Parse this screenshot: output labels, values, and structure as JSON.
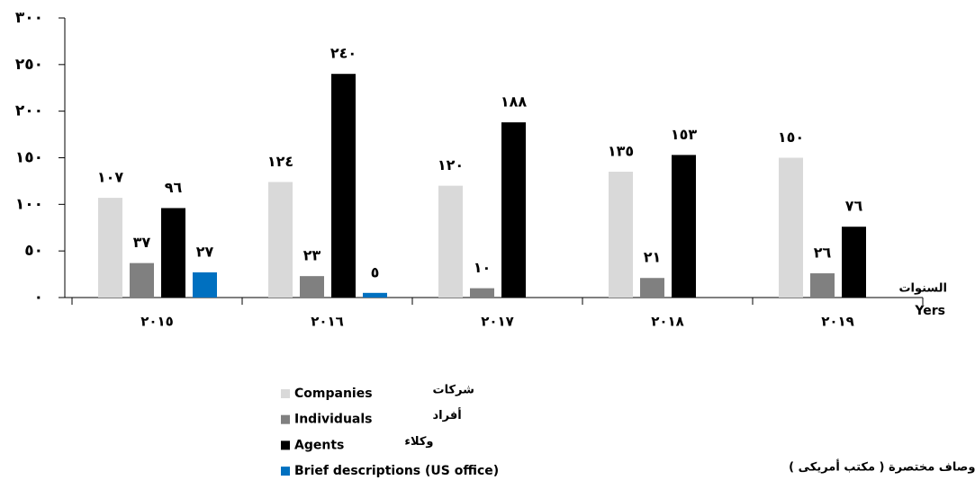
{
  "chart_data": {
    "type": "bar",
    "categories": [
      "٢٠١٥",
      "٢٠١٦",
      "٢٠١٧",
      "٢٠١٨",
      "٢٠١٩"
    ],
    "series": [
      {
        "name": "Companies",
        "name_ar": "شركات",
        "color": "#d9d9d9",
        "values": [
          107,
          124,
          120,
          135,
          150
        ],
        "value_labels": [
          "١٠٧",
          "١٢٤",
          "١٢٠",
          "١٣٥",
          "١٥٠"
        ]
      },
      {
        "name": "Individuals",
        "name_ar": "أفراد",
        "color": "#808080",
        "values": [
          37,
          23,
          10,
          21,
          26
        ],
        "value_labels": [
          "٣٧",
          "٢٣",
          "١٠",
          "٢١",
          "٢٦"
        ]
      },
      {
        "name": "Agents",
        "name_ar": "وكلاء",
        "color": "#000000",
        "values": [
          96,
          240,
          188,
          153,
          76
        ],
        "value_labels": [
          "٩٦",
          "٢٤٠",
          "١٨٨",
          "١٥٣",
          "٧٦"
        ]
      },
      {
        "name": "Brief descriptions (US office)",
        "name_ar": "أوصاف مختصرة ( مكتب أمريكى )",
        "color": "#0070c0",
        "values": [
          27,
          5,
          null,
          null,
          null
        ],
        "value_labels": [
          "٢٧",
          "٥",
          null,
          null,
          null
        ]
      }
    ],
    "x_label_ar": "السنوات",
    "x_label": "Yers",
    "ylim": [
      0,
      300
    ],
    "yticks": [
      {
        "value": 0,
        "label": "٠"
      },
      {
        "value": 50,
        "label": "٥٠"
      },
      {
        "value": 100,
        "label": "١٠٠"
      },
      {
        "value": 150,
        "label": "١٥٠"
      },
      {
        "value": 200,
        "label": "٢٠٠"
      },
      {
        "value": 250,
        "label": "٢٥٠"
      },
      {
        "value": 300,
        "label": "٣٠٠"
      }
    ]
  }
}
